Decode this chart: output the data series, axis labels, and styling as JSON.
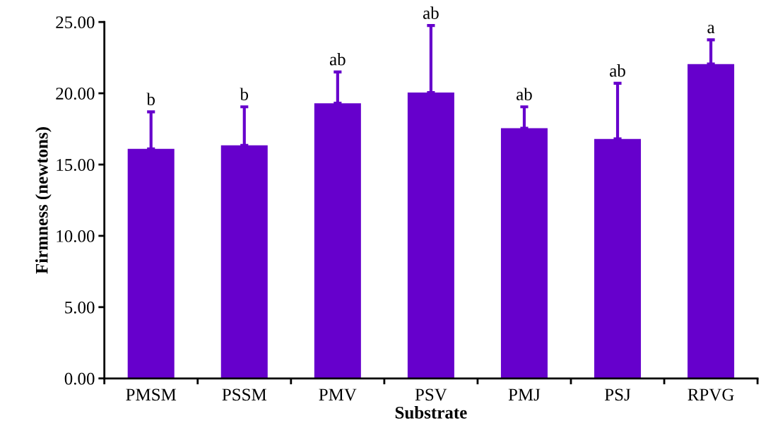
{
  "chart_data": {
    "type": "bar",
    "xlabel": "Substrate",
    "ylabel": "Firmness (newtons)",
    "categories": [
      "PMSM",
      "PSSM",
      "PMV",
      "PSV",
      "PMJ",
      "PSJ",
      "RPVG"
    ],
    "values": [
      16.1,
      16.35,
      19.3,
      20.05,
      17.55,
      16.8,
      22.05
    ],
    "errors": [
      [
        16.1,
        18.7
      ],
      [
        16.35,
        19.05
      ],
      [
        19.3,
        21.5
      ],
      [
        20.05,
        24.75
      ],
      [
        17.55,
        19.05
      ],
      [
        16.8,
        20.7
      ],
      [
        22.05,
        23.75
      ]
    ],
    "color": "#6600cc",
    "ylim": [
      0,
      25
    ],
    "yticks": [
      {
        "value": 0,
        "label": "0.00"
      },
      {
        "value": 5,
        "label": "5.00"
      },
      {
        "value": 10,
        "label": "10.00"
      },
      {
        "value": 15,
        "label": "15.00"
      },
      {
        "value": 20,
        "label": "20.00"
      },
      {
        "value": 25,
        "label": "25.00"
      }
    ],
    "annotations": [
      {
        "text": "b",
        "x": "PMSM",
        "y": 18.7
      },
      {
        "text": "b",
        "x": "PSSM",
        "y": 19.05
      },
      {
        "text": "ab",
        "x": "PMV",
        "y": 21.5
      },
      {
        "text": "ab",
        "x": "PSV",
        "y": 24.75
      },
      {
        "text": "ab",
        "x": "PMJ",
        "y": 19.05
      },
      {
        "text": "ab",
        "x": "PSJ",
        "y": 20.7
      },
      {
        "text": "a",
        "x": "RPVG",
        "y": 23.75
      }
    ],
    "grid": false
  }
}
